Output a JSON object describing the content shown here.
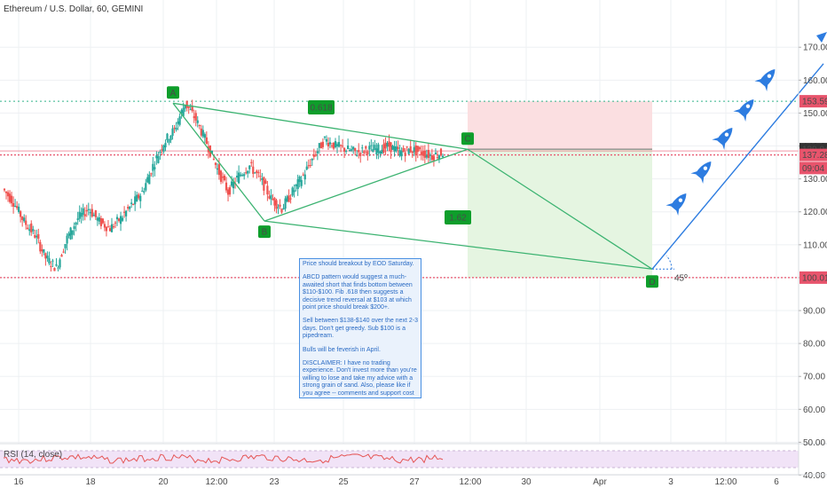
{
  "header": {
    "title": "Ethereum / U.S. Dollar, 60, GEMINI"
  },
  "chart_data": {
    "type": "line",
    "title": "Ethereum / U.S. Dollar, 60, GEMINI",
    "y_axis": {
      "ticks": [
        "170.00",
        "160.00",
        "150.00",
        "140.00",
        "130.00",
        "120.00",
        "110.00",
        "100.00",
        "90.00",
        "80.00",
        "70.00",
        "60.00",
        "50.00",
        "40.00"
      ],
      "ylim": [
        35,
        183
      ]
    },
    "x_axis": {
      "ticks": [
        "16",
        "18",
        "20",
        "12:00",
        "23",
        "25",
        "27",
        "12:00",
        "30",
        "Apr",
        "3",
        "12:00",
        "6"
      ]
    },
    "price_labels": [
      {
        "text": "153.59",
        "value": 153.59,
        "color": "#e8546c"
      },
      {
        "text": "139.04",
        "value": 139.04,
        "color": "#333333"
      },
      {
        "text": "137.28",
        "value": 137.28,
        "color": "#e8546c"
      },
      {
        "text": "09:04",
        "value": 133.3,
        "color": "#e8546c"
      },
      {
        "text": "100.01",
        "value": 100.01,
        "color": "#e8546c"
      }
    ],
    "pattern_points": [
      {
        "label": "A",
        "value": 153.0
      },
      {
        "label": "B",
        "value": 117.2
      },
      {
        "label": "C",
        "value": 139.0
      },
      {
        "label": "D",
        "value": 102.6
      }
    ],
    "ratio_labels": [
      "0.618",
      "1.62"
    ],
    "angle_label": "45º",
    "horizontal_levels": [
      153.59,
      137.28,
      100.01,
      138.5
    ],
    "price_series": {
      "name": "ETHUSD",
      "x_ticks": [
        "16",
        "18",
        "20",
        "23",
        "25",
        "27"
      ],
      "values": [
        127,
        123,
        117,
        113,
        106,
        103,
        112,
        118,
        121,
        117,
        115,
        118,
        122,
        126,
        134,
        141,
        145,
        153,
        148,
        141,
        133,
        126,
        131,
        134,
        130,
        124,
        121,
        126,
        131,
        137,
        142,
        140,
        139,
        138,
        139,
        139,
        140,
        138,
        139,
        138,
        137,
        138
      ]
    },
    "rsi": {
      "label": "RSI (14, close)",
      "upper": 70,
      "lower": 30
    }
  },
  "annotation": {
    "lines": [
      "Price should breakout by EOD Saturday.",
      "ABCD pattern would suggest a much-awaited short that finds bottom between $110-$100. Fib .618 then suggests a decisive trend reversal at $103 at which point price should break $200+.",
      "Sell between $138-$140 over the next 2-3 days. Don't get greedy. Sub $100 is a pipedream.",
      "Bulls will be feverish in April.",
      "DISCLAIMER: I have no trading experience. Don't invest more than you're willing to lose and take my advice with a strong grain of sand. Also, please like if you agree -- comments and support cost nothing."
    ]
  },
  "colors": {
    "candle_up": "#26a69a",
    "candle_down": "#ef5350",
    "pattern_line": "#3cb371",
    "pattern_badge": "#0e9e2b",
    "dotted_green": "#31b38a",
    "dotted_red": "#e8546c",
    "short_zone": "#fbdfe1",
    "target_zone": "#e5f5e1",
    "arrow": "#2d7ce0",
    "rsi_band": "#f1e3f7",
    "rsi_line": "#e55555"
  },
  "icons": {
    "trend_markers": "rocket-icon"
  }
}
